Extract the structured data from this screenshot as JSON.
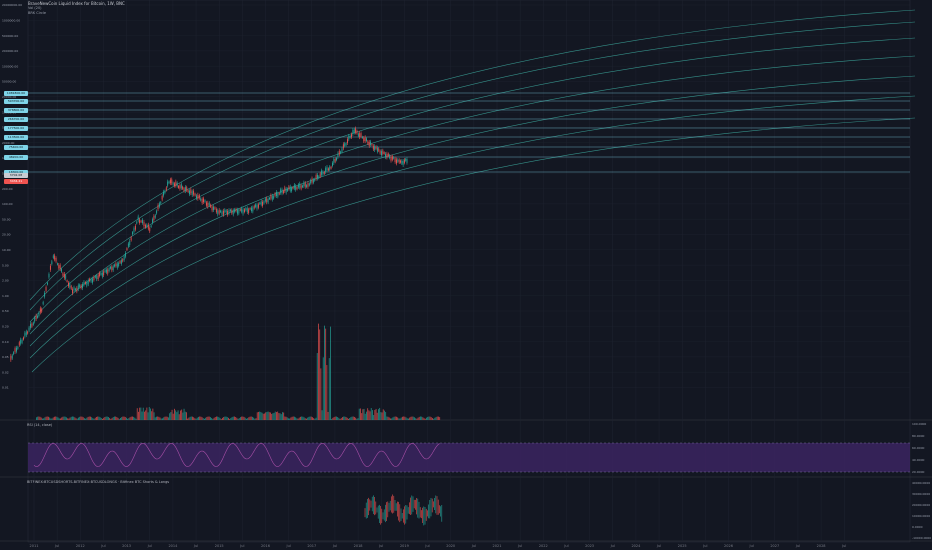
{
  "legend": {
    "title": "BraveNewCoin Liquid Index for Bitcoin, 1W, BNC",
    "line2": "Vol (20)",
    "line3": "BRK Circle"
  },
  "price_axis": {
    "labels": [
      "20000000.00",
      "1000000.00",
      "500000.00",
      "200000.00",
      "100000.00",
      "50000.00",
      "20000.00",
      "10000.00",
      "5000.00",
      "2000.00",
      "1000.00",
      "500.00",
      "200.00",
      "100.00",
      "50.00",
      "20.00",
      "10.00",
      "5.00",
      "2.00",
      "1.00",
      "0.50",
      "0.20",
      "0.10",
      "0.05",
      "0.02",
      "0.01"
    ],
    "levels": [
      "1081800.00",
      "593700.00",
      "378800.00",
      "266700.00",
      "177500.00",
      "113500.00",
      "75400.00",
      "48200.00",
      "18300.00"
    ],
    "current_top": "3702.08",
    "current_bottom": "3434.21"
  },
  "rsi": {
    "label": "RSI (14, close)",
    "axis": [
      "100.0000",
      "80.0000",
      "60.0000",
      "40.0000",
      "20.0000"
    ]
  },
  "shorts": {
    "label": "BITFINEX:BTCUSDSHORTS-BITFINEX:BTCUSDLONGS · Bitfinex BTC Shorts & Longs",
    "axis": [
      "40000.0000",
      "30000.0000",
      "20000.0000",
      "10000.0000",
      "0.0000",
      "-10000.0000"
    ]
  },
  "time_axis": [
    "2011",
    "Jul",
    "2012",
    "Jul",
    "2013",
    "Jul",
    "2014",
    "Jul",
    "2015",
    "Jul",
    "2016",
    "Jul",
    "2017",
    "Jul",
    "2018",
    "Jul",
    "2019",
    "Jul",
    "2020",
    "Jul",
    "2021",
    "Jul",
    "2022",
    "Jul",
    "2023",
    "Jul",
    "2024",
    "Jul",
    "2025",
    "Jul",
    "2026",
    "Jul",
    "2027",
    "Jul",
    "2028",
    "Jul"
  ],
  "colors": {
    "bg": "#131722",
    "up": "#26a69a",
    "down": "#ef5350",
    "band": "#3fb0a4",
    "level": "#7fd4e8",
    "rsi_fill": "#3b2560",
    "rsi_line": "#a94fa8",
    "grid": "#1e2330"
  },
  "chart_data": {
    "type": "candlestick",
    "symbol": "BraveNewCoin Liquid Index for Bitcoin",
    "interval": "1W",
    "price_scale": "log",
    "series": [
      {
        "x": "2010-07",
        "y": 0.06
      },
      {
        "x": "2011-03",
        "y": 0.9
      },
      {
        "x": "2011-06",
        "y": 18
      },
      {
        "x": "2011-11",
        "y": 2.5
      },
      {
        "x": "2012-06",
        "y": 6
      },
      {
        "x": "2012-12",
        "y": 13
      },
      {
        "x": "2013-04",
        "y": 140
      },
      {
        "x": "2013-07",
        "y": 80
      },
      {
        "x": "2013-12",
        "y": 1150
      },
      {
        "x": "2014-06",
        "y": 600
      },
      {
        "x": "2015-01",
        "y": 200
      },
      {
        "x": "2015-09",
        "y": 230
      },
      {
        "x": "2016-06",
        "y": 700
      },
      {
        "x": "2016-12",
        "y": 950
      },
      {
        "x": "2017-06",
        "y": 2600
      },
      {
        "x": "2017-12",
        "y": 19500
      },
      {
        "x": "2018-06",
        "y": 6500
      },
      {
        "x": "2018-12",
        "y": 3200
      },
      {
        "x": "2019-02",
        "y": 3700
      }
    ],
    "rsi_range": [
      0,
      100
    ],
    "time_range": [
      "2011",
      "2028-Jul"
    ]
  }
}
